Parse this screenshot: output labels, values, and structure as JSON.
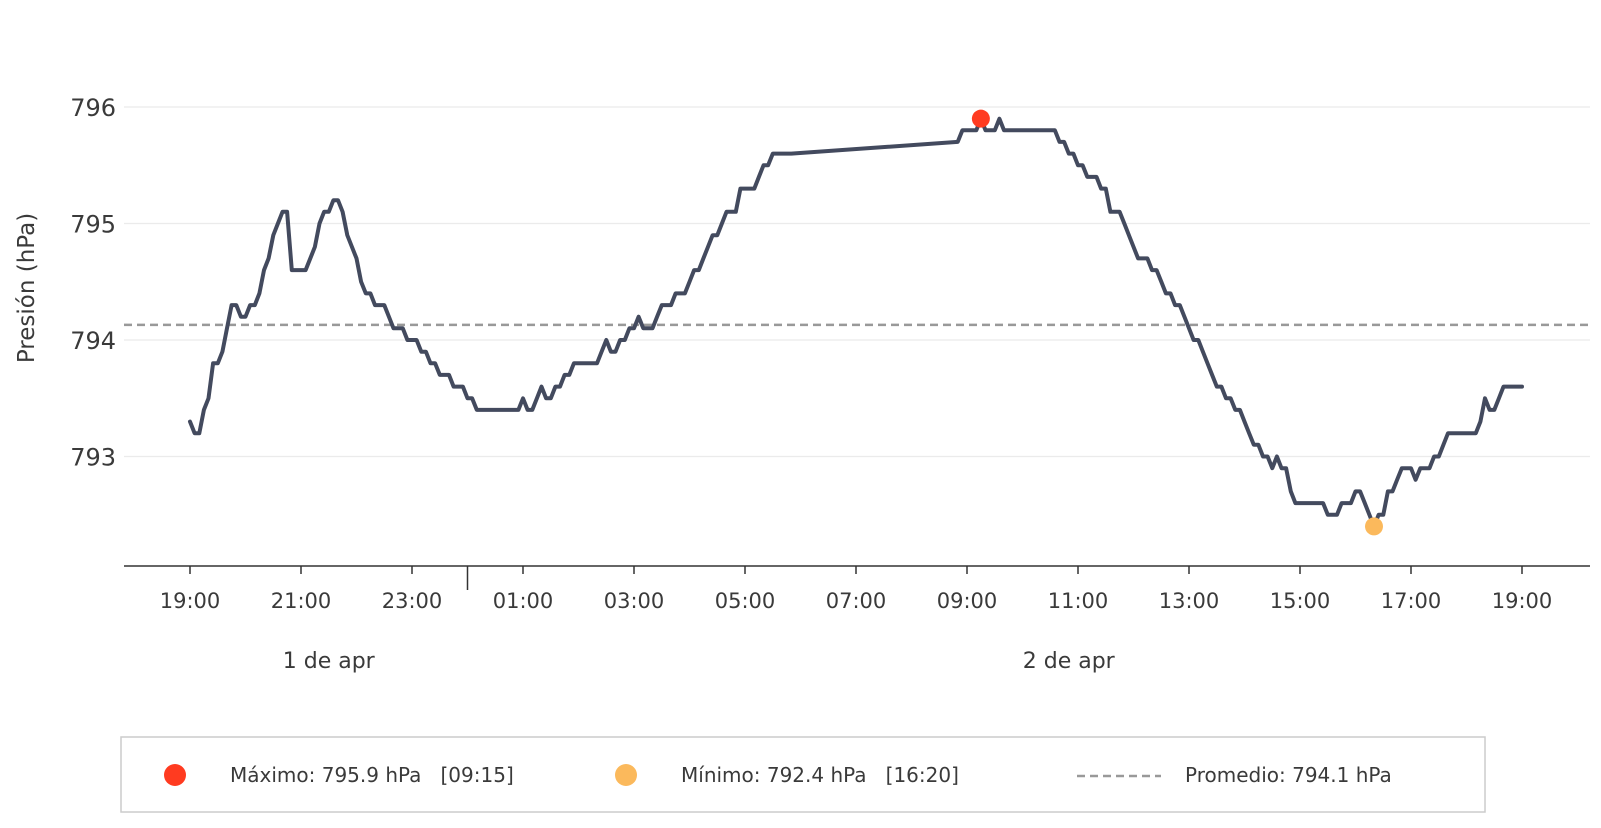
{
  "chart_data": {
    "type": "line",
    "ylabel": "Presión (hPa)",
    "y_ticks": [
      793,
      794,
      795,
      796
    ],
    "ylim": [
      792.06,
      796.4
    ],
    "x_range": [
      "19:00",
      "19:00"
    ],
    "x_ticks": [
      "19:00",
      "21:00",
      "23:00",
      "01:00",
      "03:00",
      "05:00",
      "07:00",
      "09:00",
      "11:00",
      "13:00",
      "15:00",
      "17:00",
      "19:00"
    ],
    "day_labels": [
      {
        "label": "1 de apr",
        "at": "21:30"
      },
      {
        "label": "2 de apr",
        "at": "10:50"
      }
    ],
    "day_boundary": "00:00",
    "grid": "horizontal",
    "series": [
      {
        "color": "#434a5e",
        "points": [
          [
            "19:00",
            793.3
          ],
          [
            "19:05",
            793.2
          ],
          [
            "19:10",
            793.2
          ],
          [
            "19:15",
            793.4
          ],
          [
            "19:20",
            793.5
          ],
          [
            "19:25",
            793.8
          ],
          [
            "19:30",
            793.8
          ],
          [
            "19:35",
            793.9
          ],
          [
            "19:40",
            794.1
          ],
          [
            "19:45",
            794.3
          ],
          [
            "19:50",
            794.3
          ],
          [
            "19:55",
            794.2
          ],
          [
            "20:00",
            794.2
          ],
          [
            "20:05",
            794.3
          ],
          [
            "20:10",
            794.3
          ],
          [
            "20:15",
            794.4
          ],
          [
            "20:20",
            794.6
          ],
          [
            "20:25",
            794.7
          ],
          [
            "20:30",
            794.9
          ],
          [
            "20:35",
            795.0
          ],
          [
            "20:40",
            795.1
          ],
          [
            "20:45",
            795.1
          ],
          [
            "20:50",
            794.6
          ],
          [
            "20:55",
            794.6
          ],
          [
            "21:00",
            794.6
          ],
          [
            "21:05",
            794.6
          ],
          [
            "21:10",
            794.7
          ],
          [
            "21:15",
            794.8
          ],
          [
            "21:20",
            795.0
          ],
          [
            "21:25",
            795.1
          ],
          [
            "21:30",
            795.1
          ],
          [
            "21:35",
            795.2
          ],
          [
            "21:40",
            795.2
          ],
          [
            "21:45",
            795.1
          ],
          [
            "21:50",
            794.9
          ],
          [
            "21:55",
            794.8
          ],
          [
            "22:00",
            794.7
          ],
          [
            "22:05",
            794.5
          ],
          [
            "22:10",
            794.4
          ],
          [
            "22:15",
            794.4
          ],
          [
            "22:20",
            794.3
          ],
          [
            "22:25",
            794.3
          ],
          [
            "22:30",
            794.3
          ],
          [
            "22:35",
            794.2
          ],
          [
            "22:40",
            794.1
          ],
          [
            "22:45",
            794.1
          ],
          [
            "22:50",
            794.1
          ],
          [
            "22:55",
            794.0
          ],
          [
            "23:00",
            794.0
          ],
          [
            "23:05",
            794.0
          ],
          [
            "23:10",
            793.9
          ],
          [
            "23:15",
            793.9
          ],
          [
            "23:20",
            793.8
          ],
          [
            "23:25",
            793.8
          ],
          [
            "23:30",
            793.7
          ],
          [
            "23:35",
            793.7
          ],
          [
            "23:40",
            793.7
          ],
          [
            "23:45",
            793.6
          ],
          [
            "23:50",
            793.6
          ],
          [
            "23:55",
            793.6
          ],
          [
            "00:00",
            793.5
          ],
          [
            "00:05",
            793.5
          ],
          [
            "00:10",
            793.4
          ],
          [
            "00:15",
            793.4
          ],
          [
            "00:20",
            793.4
          ],
          [
            "00:25",
            793.4
          ],
          [
            "00:30",
            793.4
          ],
          [
            "00:35",
            793.4
          ],
          [
            "00:40",
            793.4
          ],
          [
            "00:45",
            793.4
          ],
          [
            "00:50",
            793.4
          ],
          [
            "00:55",
            793.4
          ],
          [
            "01:00",
            793.5
          ],
          [
            "01:05",
            793.4
          ],
          [
            "01:10",
            793.4
          ],
          [
            "01:15",
            793.5
          ],
          [
            "01:20",
            793.6
          ],
          [
            "01:25",
            793.5
          ],
          [
            "01:30",
            793.5
          ],
          [
            "01:35",
            793.6
          ],
          [
            "01:40",
            793.6
          ],
          [
            "01:45",
            793.7
          ],
          [
            "01:50",
            793.7
          ],
          [
            "01:55",
            793.8
          ],
          [
            "02:00",
            793.8
          ],
          [
            "02:05",
            793.8
          ],
          [
            "02:10",
            793.8
          ],
          [
            "02:15",
            793.8
          ],
          [
            "02:20",
            793.8
          ],
          [
            "02:25",
            793.9
          ],
          [
            "02:30",
            794.0
          ],
          [
            "02:35",
            793.9
          ],
          [
            "02:40",
            793.9
          ],
          [
            "02:45",
            794.0
          ],
          [
            "02:50",
            794.0
          ],
          [
            "02:55",
            794.1
          ],
          [
            "03:00",
            794.1
          ],
          [
            "03:05",
            794.2
          ],
          [
            "03:10",
            794.1
          ],
          [
            "03:15",
            794.1
          ],
          [
            "03:20",
            794.1
          ],
          [
            "03:25",
            794.2
          ],
          [
            "03:30",
            794.3
          ],
          [
            "03:35",
            794.3
          ],
          [
            "03:40",
            794.3
          ],
          [
            "03:45",
            794.4
          ],
          [
            "03:50",
            794.4
          ],
          [
            "03:55",
            794.4
          ],
          [
            "04:00",
            794.5
          ],
          [
            "04:05",
            794.6
          ],
          [
            "04:10",
            794.6
          ],
          [
            "04:15",
            794.7
          ],
          [
            "04:20",
            794.8
          ],
          [
            "04:25",
            794.9
          ],
          [
            "04:30",
            794.9
          ],
          [
            "04:35",
            795.0
          ],
          [
            "04:40",
            795.1
          ],
          [
            "04:45",
            795.1
          ],
          [
            "04:50",
            795.1
          ],
          [
            "04:55",
            795.3
          ],
          [
            "05:00",
            795.3
          ],
          [
            "05:05",
            795.3
          ],
          [
            "05:10",
            795.3
          ],
          [
            "05:15",
            795.4
          ],
          [
            "05:20",
            795.5
          ],
          [
            "05:25",
            795.5
          ],
          [
            "05:30",
            795.6
          ],
          [
            "05:35",
            795.6
          ],
          [
            "05:40",
            795.6
          ],
          [
            "05:45",
            795.6
          ],
          [
            "05:50",
            795.6
          ],
          [
            "08:50",
            795.7
          ],
          [
            "08:55",
            795.8
          ],
          [
            "09:00",
            795.8
          ],
          [
            "09:05",
            795.8
          ],
          [
            "09:10",
            795.8
          ],
          [
            "09:15",
            795.9
          ],
          [
            "09:20",
            795.8
          ],
          [
            "09:25",
            795.8
          ],
          [
            "09:30",
            795.8
          ],
          [
            "09:35",
            795.9
          ],
          [
            "09:40",
            795.8
          ],
          [
            "09:45",
            795.8
          ],
          [
            "09:50",
            795.8
          ],
          [
            "09:55",
            795.8
          ],
          [
            "10:00",
            795.8
          ],
          [
            "10:05",
            795.8
          ],
          [
            "10:10",
            795.8
          ],
          [
            "10:15",
            795.8
          ],
          [
            "10:20",
            795.8
          ],
          [
            "10:25",
            795.8
          ],
          [
            "10:30",
            795.8
          ],
          [
            "10:35",
            795.8
          ],
          [
            "10:40",
            795.7
          ],
          [
            "10:45",
            795.7
          ],
          [
            "10:50",
            795.6
          ],
          [
            "10:55",
            795.6
          ],
          [
            "11:00",
            795.5
          ],
          [
            "11:05",
            795.5
          ],
          [
            "11:10",
            795.4
          ],
          [
            "11:15",
            795.4
          ],
          [
            "11:20",
            795.4
          ],
          [
            "11:25",
            795.3
          ],
          [
            "11:30",
            795.3
          ],
          [
            "11:35",
            795.1
          ],
          [
            "11:40",
            795.1
          ],
          [
            "11:45",
            795.1
          ],
          [
            "11:50",
            795.0
          ],
          [
            "11:55",
            794.9
          ],
          [
            "12:00",
            794.8
          ],
          [
            "12:05",
            794.7
          ],
          [
            "12:10",
            794.7
          ],
          [
            "12:15",
            794.7
          ],
          [
            "12:20",
            794.6
          ],
          [
            "12:25",
            794.6
          ],
          [
            "12:30",
            794.5
          ],
          [
            "12:35",
            794.4
          ],
          [
            "12:40",
            794.4
          ],
          [
            "12:45",
            794.3
          ],
          [
            "12:50",
            794.3
          ],
          [
            "12:55",
            794.2
          ],
          [
            "13:00",
            794.1
          ],
          [
            "13:05",
            794.0
          ],
          [
            "13:10",
            794.0
          ],
          [
            "13:15",
            793.9
          ],
          [
            "13:20",
            793.8
          ],
          [
            "13:25",
            793.7
          ],
          [
            "13:30",
            793.6
          ],
          [
            "13:35",
            793.6
          ],
          [
            "13:40",
            793.5
          ],
          [
            "13:45",
            793.5
          ],
          [
            "13:50",
            793.4
          ],
          [
            "13:55",
            793.4
          ],
          [
            "14:00",
            793.3
          ],
          [
            "14:05",
            793.2
          ],
          [
            "14:10",
            793.1
          ],
          [
            "14:15",
            793.1
          ],
          [
            "14:20",
            793.0
          ],
          [
            "14:25",
            793.0
          ],
          [
            "14:30",
            792.9
          ],
          [
            "14:35",
            793.0
          ],
          [
            "14:40",
            792.9
          ],
          [
            "14:45",
            792.9
          ],
          [
            "14:50",
            792.7
          ],
          [
            "14:55",
            792.6
          ],
          [
            "15:00",
            792.6
          ],
          [
            "15:05",
            792.6
          ],
          [
            "15:10",
            792.6
          ],
          [
            "15:15",
            792.6
          ],
          [
            "15:20",
            792.6
          ],
          [
            "15:25",
            792.6
          ],
          [
            "15:30",
            792.5
          ],
          [
            "15:35",
            792.5
          ],
          [
            "15:40",
            792.5
          ],
          [
            "15:45",
            792.6
          ],
          [
            "15:50",
            792.6
          ],
          [
            "15:55",
            792.6
          ],
          [
            "16:00",
            792.7
          ],
          [
            "16:05",
            792.7
          ],
          [
            "16:10",
            792.6
          ],
          [
            "16:15",
            792.5
          ],
          [
            "16:20",
            792.4
          ],
          [
            "16:25",
            792.5
          ],
          [
            "16:30",
            792.5
          ],
          [
            "16:35",
            792.7
          ],
          [
            "16:40",
            792.7
          ],
          [
            "16:45",
            792.8
          ],
          [
            "16:50",
            792.9
          ],
          [
            "16:55",
            792.9
          ],
          [
            "17:00",
            792.9
          ],
          [
            "17:05",
            792.8
          ],
          [
            "17:10",
            792.9
          ],
          [
            "17:15",
            792.9
          ],
          [
            "17:20",
            792.9
          ],
          [
            "17:25",
            793.0
          ],
          [
            "17:30",
            793.0
          ],
          [
            "17:35",
            793.1
          ],
          [
            "17:40",
            793.2
          ],
          [
            "17:45",
            793.2
          ],
          [
            "17:50",
            793.2
          ],
          [
            "17:55",
            793.2
          ],
          [
            "18:00",
            793.2
          ],
          [
            "18:05",
            793.2
          ],
          [
            "18:10",
            793.2
          ],
          [
            "18:15",
            793.3
          ],
          [
            "18:20",
            793.5
          ],
          [
            "18:25",
            793.4
          ],
          [
            "18:30",
            793.4
          ],
          [
            "18:35",
            793.5
          ],
          [
            "18:40",
            793.6
          ],
          [
            "18:45",
            793.6
          ],
          [
            "18:50",
            793.6
          ],
          [
            "18:55",
            793.6
          ],
          [
            "19:00",
            793.6
          ]
        ]
      }
    ],
    "max_point": {
      "time": "09:15",
      "value": 795.9,
      "color": "#ff3b20"
    },
    "min_point": {
      "time": "16:20",
      "value": 792.4,
      "color": "#fbb95c"
    },
    "average": {
      "value": 794.13,
      "color": "#999999"
    }
  },
  "legend": {
    "max_label": "Máximo: 795.9 hPa   [09:15]",
    "min_label": "Mínimo: 792.4 hPa   [16:20]",
    "avg_label": "Promedio: 794.1 hPa"
  }
}
